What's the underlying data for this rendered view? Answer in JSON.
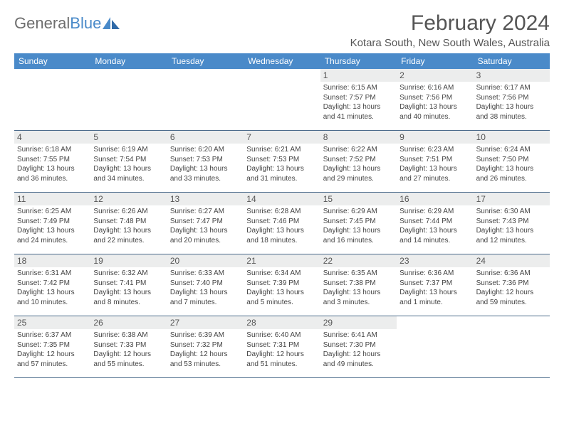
{
  "logo": {
    "text_gray": "General",
    "text_blue": "Blue"
  },
  "title": "February 2024",
  "location": "Kotara South, New South Wales, Australia",
  "colors": {
    "header_bg": "#4a8ac9",
    "header_text": "#ffffff",
    "daynum_bg": "#eceded",
    "rule": "#4a6a8a",
    "body_text": "#444444",
    "title_text": "#555555"
  },
  "day_headers": [
    "Sunday",
    "Monday",
    "Tuesday",
    "Wednesday",
    "Thursday",
    "Friday",
    "Saturday"
  ],
  "weeks": [
    [
      {
        "n": "",
        "sr": "",
        "ss": "",
        "dl": ""
      },
      {
        "n": "",
        "sr": "",
        "ss": "",
        "dl": ""
      },
      {
        "n": "",
        "sr": "",
        "ss": "",
        "dl": ""
      },
      {
        "n": "",
        "sr": "",
        "ss": "",
        "dl": ""
      },
      {
        "n": "1",
        "sr": "Sunrise: 6:15 AM",
        "ss": "Sunset: 7:57 PM",
        "dl": "Daylight: 13 hours and 41 minutes."
      },
      {
        "n": "2",
        "sr": "Sunrise: 6:16 AM",
        "ss": "Sunset: 7:56 PM",
        "dl": "Daylight: 13 hours and 40 minutes."
      },
      {
        "n": "3",
        "sr": "Sunrise: 6:17 AM",
        "ss": "Sunset: 7:56 PM",
        "dl": "Daylight: 13 hours and 38 minutes."
      }
    ],
    [
      {
        "n": "4",
        "sr": "Sunrise: 6:18 AM",
        "ss": "Sunset: 7:55 PM",
        "dl": "Daylight: 13 hours and 36 minutes."
      },
      {
        "n": "5",
        "sr": "Sunrise: 6:19 AM",
        "ss": "Sunset: 7:54 PM",
        "dl": "Daylight: 13 hours and 34 minutes."
      },
      {
        "n": "6",
        "sr": "Sunrise: 6:20 AM",
        "ss": "Sunset: 7:53 PM",
        "dl": "Daylight: 13 hours and 33 minutes."
      },
      {
        "n": "7",
        "sr": "Sunrise: 6:21 AM",
        "ss": "Sunset: 7:53 PM",
        "dl": "Daylight: 13 hours and 31 minutes."
      },
      {
        "n": "8",
        "sr": "Sunrise: 6:22 AM",
        "ss": "Sunset: 7:52 PM",
        "dl": "Daylight: 13 hours and 29 minutes."
      },
      {
        "n": "9",
        "sr": "Sunrise: 6:23 AM",
        "ss": "Sunset: 7:51 PM",
        "dl": "Daylight: 13 hours and 27 minutes."
      },
      {
        "n": "10",
        "sr": "Sunrise: 6:24 AM",
        "ss": "Sunset: 7:50 PM",
        "dl": "Daylight: 13 hours and 26 minutes."
      }
    ],
    [
      {
        "n": "11",
        "sr": "Sunrise: 6:25 AM",
        "ss": "Sunset: 7:49 PM",
        "dl": "Daylight: 13 hours and 24 minutes."
      },
      {
        "n": "12",
        "sr": "Sunrise: 6:26 AM",
        "ss": "Sunset: 7:48 PM",
        "dl": "Daylight: 13 hours and 22 minutes."
      },
      {
        "n": "13",
        "sr": "Sunrise: 6:27 AM",
        "ss": "Sunset: 7:47 PM",
        "dl": "Daylight: 13 hours and 20 minutes."
      },
      {
        "n": "14",
        "sr": "Sunrise: 6:28 AM",
        "ss": "Sunset: 7:46 PM",
        "dl": "Daylight: 13 hours and 18 minutes."
      },
      {
        "n": "15",
        "sr": "Sunrise: 6:29 AM",
        "ss": "Sunset: 7:45 PM",
        "dl": "Daylight: 13 hours and 16 minutes."
      },
      {
        "n": "16",
        "sr": "Sunrise: 6:29 AM",
        "ss": "Sunset: 7:44 PM",
        "dl": "Daylight: 13 hours and 14 minutes."
      },
      {
        "n": "17",
        "sr": "Sunrise: 6:30 AM",
        "ss": "Sunset: 7:43 PM",
        "dl": "Daylight: 13 hours and 12 minutes."
      }
    ],
    [
      {
        "n": "18",
        "sr": "Sunrise: 6:31 AM",
        "ss": "Sunset: 7:42 PM",
        "dl": "Daylight: 13 hours and 10 minutes."
      },
      {
        "n": "19",
        "sr": "Sunrise: 6:32 AM",
        "ss": "Sunset: 7:41 PM",
        "dl": "Daylight: 13 hours and 8 minutes."
      },
      {
        "n": "20",
        "sr": "Sunrise: 6:33 AM",
        "ss": "Sunset: 7:40 PM",
        "dl": "Daylight: 13 hours and 7 minutes."
      },
      {
        "n": "21",
        "sr": "Sunrise: 6:34 AM",
        "ss": "Sunset: 7:39 PM",
        "dl": "Daylight: 13 hours and 5 minutes."
      },
      {
        "n": "22",
        "sr": "Sunrise: 6:35 AM",
        "ss": "Sunset: 7:38 PM",
        "dl": "Daylight: 13 hours and 3 minutes."
      },
      {
        "n": "23",
        "sr": "Sunrise: 6:36 AM",
        "ss": "Sunset: 7:37 PM",
        "dl": "Daylight: 13 hours and 1 minute."
      },
      {
        "n": "24",
        "sr": "Sunrise: 6:36 AM",
        "ss": "Sunset: 7:36 PM",
        "dl": "Daylight: 12 hours and 59 minutes."
      }
    ],
    [
      {
        "n": "25",
        "sr": "Sunrise: 6:37 AM",
        "ss": "Sunset: 7:35 PM",
        "dl": "Daylight: 12 hours and 57 minutes."
      },
      {
        "n": "26",
        "sr": "Sunrise: 6:38 AM",
        "ss": "Sunset: 7:33 PM",
        "dl": "Daylight: 12 hours and 55 minutes."
      },
      {
        "n": "27",
        "sr": "Sunrise: 6:39 AM",
        "ss": "Sunset: 7:32 PM",
        "dl": "Daylight: 12 hours and 53 minutes."
      },
      {
        "n": "28",
        "sr": "Sunrise: 6:40 AM",
        "ss": "Sunset: 7:31 PM",
        "dl": "Daylight: 12 hours and 51 minutes."
      },
      {
        "n": "29",
        "sr": "Sunrise: 6:41 AM",
        "ss": "Sunset: 7:30 PM",
        "dl": "Daylight: 12 hours and 49 minutes."
      },
      {
        "n": "",
        "sr": "",
        "ss": "",
        "dl": ""
      },
      {
        "n": "",
        "sr": "",
        "ss": "",
        "dl": ""
      }
    ]
  ]
}
